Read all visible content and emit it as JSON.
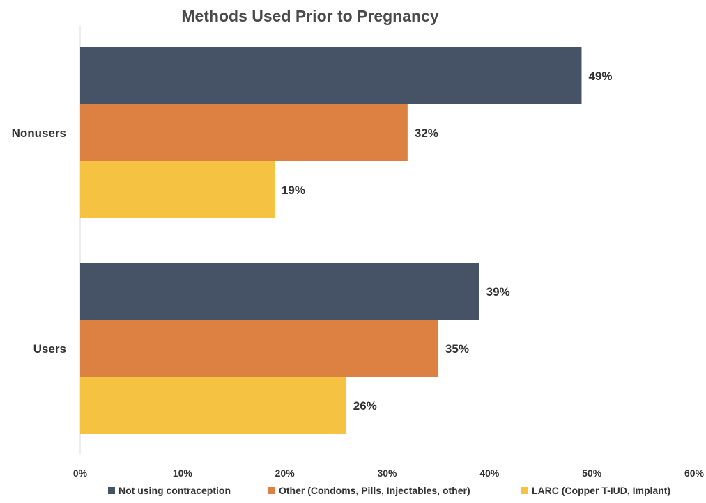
{
  "chart_data": {
    "type": "bar",
    "orientation": "horizontal",
    "title": "Methods Used Prior to Pregnancy",
    "categories": [
      "Nonusers",
      "Users"
    ],
    "series": [
      {
        "name": "Not using contraception",
        "color": "#465366",
        "values": [
          49,
          39
        ],
        "labels": [
          "49%",
          "39%"
        ]
      },
      {
        "name": "Other (Condoms, Pills, Injectables, other)",
        "color": "#DD8143",
        "values": [
          32,
          35
        ],
        "labels": [
          "32%",
          "35%"
        ]
      },
      {
        "name": "LARC (Copper T-IUD, Implant)",
        "color": "#F5C242",
        "values": [
          19,
          26
        ],
        "labels": [
          "19%",
          "26%"
        ]
      }
    ],
    "xlim": [
      0,
      60
    ],
    "x_ticks": [
      "0%",
      "10%",
      "20%",
      "30%",
      "40%",
      "50%",
      "60%"
    ],
    "grid": false,
    "legend_position": "bottom"
  }
}
